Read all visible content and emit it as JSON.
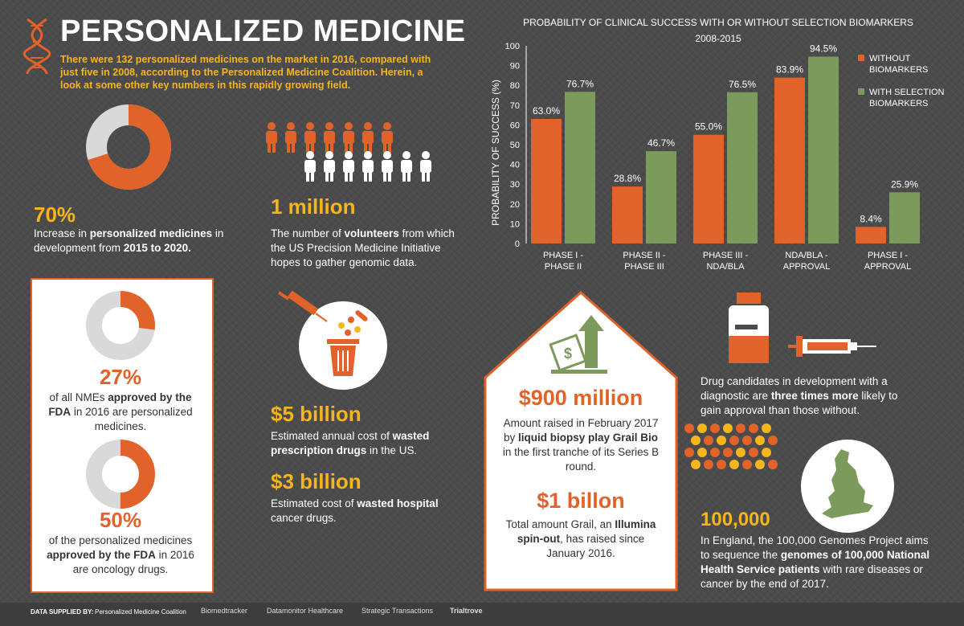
{
  "header": {
    "title": "PERSONALIZED MEDICINE",
    "intro": "There were 132 personalized medicines on the market in 2016, compared with just five in 2008, according to the Personalized Medicine Coalition. Herein, a look at some other key numbers in this rapidly growing field."
  },
  "stats": {
    "s70": {
      "value": "70%",
      "pre": "Increase in ",
      "b1": "personalized medicines",
      "mid": " in development from ",
      "b2": "2015 to 2020."
    },
    "million": {
      "value": "1 million",
      "pre": "The number of ",
      "b1": "volunteers",
      "post": " from which the US Precision Medicine Initiative hopes to gather genomic data."
    },
    "s27": {
      "value": "27%",
      "pre": "of all NMEs ",
      "b1": "approved by the FDA",
      "post": " in 2016 are personalized medicines."
    },
    "s50": {
      "value": "50%",
      "pre": "of the personalized medicines ",
      "b1": "approved by the FDA",
      "post": " in 2016 are oncology drugs."
    },
    "b5": {
      "value": "$5 billion",
      "pre": "Estimated annual cost of ",
      "b1": "wasted prescription drugs",
      "post": " in the US."
    },
    "b3": {
      "value": "$3 billion",
      "pre": "Estimated cost of ",
      "b1": "wasted hospital",
      "post": " cancer drugs."
    },
    "m900": {
      "value": "$900 million",
      "pre": "Amount raised in February 2017 by ",
      "b1": "liquid biopsy play Grail Bio",
      "post": " in the first tranche of its Series B round."
    },
    "b1bn": {
      "value": "$1 billon",
      "pre": "Total amount Grail, an ",
      "b1": "Illumina spin-out",
      "post": ", has raised since January 2016."
    },
    "three": {
      "pre": "Drug candidates in development with a diagnostic are ",
      "b1": "three times more",
      "post": " likely to gain approval than those without."
    },
    "k100": {
      "value": "100,000",
      "pre": "In England, the 100,000 Genomes Project aims to sequence the ",
      "b1": "genomes of 100,000 National Health Service patients",
      "post": " with rare diseases or cancer by the end of 2017."
    }
  },
  "donuts": {
    "d70": 0.7,
    "d27": 0.27,
    "d50": 0.5
  },
  "colors": {
    "orange": "#e2632a",
    "green": "#7b9a5c",
    "yellow": "#f5b51b",
    "grey": "#d9d9d9"
  },
  "chart_data": {
    "type": "bar",
    "title": "PROBABILITY OF CLINICAL SUCCESS WITH OR WITHOUT SELECTION BIOMARKERS",
    "subtitle": "2008-2015",
    "ylabel": "PROBABILITY OF SUCCESS (%)",
    "ylim": [
      0,
      100
    ],
    "yticks": [
      0,
      10,
      20,
      30,
      40,
      50,
      60,
      70,
      80,
      90,
      100
    ],
    "categories": [
      [
        "PHASE I -",
        "PHASE II"
      ],
      [
        "PHASE II -",
        "PHASE III"
      ],
      [
        "PHASE III -",
        "NDA/BLA"
      ],
      [
        "NDA/BLA -",
        "APPROVAL"
      ],
      [
        "PHASE I -",
        "APPROVAL"
      ]
    ],
    "series": [
      {
        "name": [
          "WITHOUT",
          "BIOMARKERS"
        ],
        "color": "#e2632a",
        "values": [
          63.0,
          28.8,
          55.0,
          83.9,
          8.4
        ],
        "labels": [
          "63.0%",
          "28.8%",
          "55.0%",
          "83.9%",
          "8.4%"
        ]
      },
      {
        "name": [
          "WITH SELECTION",
          "BIOMARKERS"
        ],
        "color": "#7b9a5c",
        "values": [
          76.7,
          46.7,
          76.5,
          94.5,
          25.9
        ],
        "labels": [
          "76.7%",
          "46.7%",
          "76.5%",
          "94.5%",
          "25.9%"
        ]
      }
    ],
    "legend": "right",
    "grid": false
  },
  "footer": {
    "label": "DATA SUPPLIED BY:",
    "source": "Personalized Medicine Coalition",
    "logos": [
      "Biomedtracker",
      "Datamonitor Healthcare",
      "Strategic Transactions",
      "Trialtrove"
    ]
  }
}
